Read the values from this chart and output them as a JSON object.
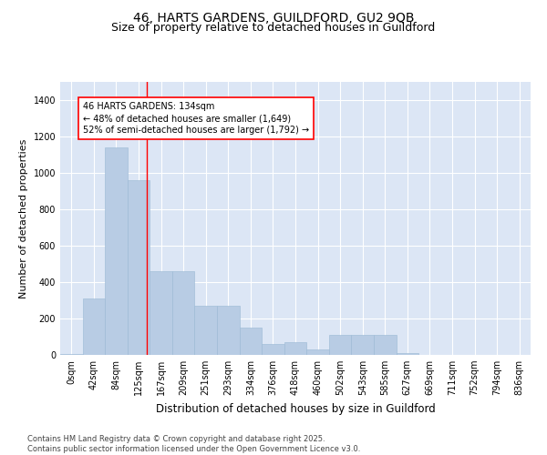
{
  "title1": "46, HARTS GARDENS, GUILDFORD, GU2 9QB",
  "title2": "Size of property relative to detached houses in Guildford",
  "xlabel": "Distribution of detached houses by size in Guildford",
  "ylabel": "Number of detached properties",
  "categories": [
    "0sqm",
    "42sqm",
    "84sqm",
    "125sqm",
    "167sqm",
    "209sqm",
    "251sqm",
    "293sqm",
    "334sqm",
    "376sqm",
    "418sqm",
    "460sqm",
    "502sqm",
    "543sqm",
    "585sqm",
    "627sqm",
    "669sqm",
    "711sqm",
    "752sqm",
    "794sqm",
    "836sqm"
  ],
  "values": [
    5,
    310,
    1140,
    960,
    460,
    460,
    270,
    270,
    150,
    60,
    70,
    30,
    110,
    110,
    110,
    10,
    0,
    0,
    0,
    0,
    0
  ],
  "bar_color": "#b8cce4",
  "bar_edge_color": "#9ab8d4",
  "bg_color": "#dce6f5",
  "grid_color": "#ffffff",
  "annotation_box_text": "46 HARTS GARDENS: 134sqm\n← 48% of detached houses are smaller (1,649)\n52% of semi-detached houses are larger (1,792) →",
  "vline_x": 3.38,
  "ylim": [
    0,
    1500
  ],
  "yticks": [
    0,
    200,
    400,
    600,
    800,
    1000,
    1200,
    1400
  ],
  "footnote": "Contains HM Land Registry data © Crown copyright and database right 2025.\nContains public sector information licensed under the Open Government Licence v3.0.",
  "title_fontsize": 10,
  "subtitle_fontsize": 9,
  "axis_label_fontsize": 8,
  "tick_fontsize": 7,
  "annotation_fontsize": 7,
  "footnote_fontsize": 6
}
